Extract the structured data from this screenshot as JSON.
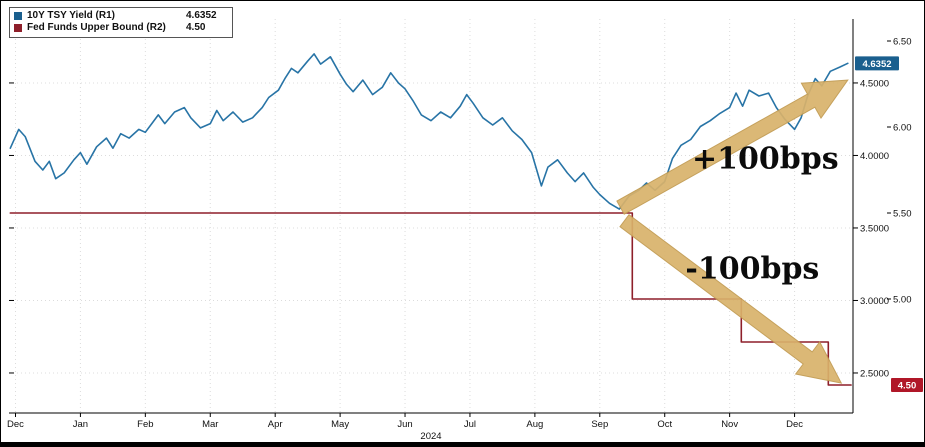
{
  "legend": {
    "items": [
      {
        "label": "10Y TSY Yield (R1)",
        "value": "4.6352",
        "color": "#1a5f8e"
      },
      {
        "label": "Fed Funds Upper Bound (R2)",
        "value": "4.50",
        "color": "#8e1f2a"
      }
    ]
  },
  "chart_data": {
    "type": "line",
    "x_axis": {
      "labels": [
        "Dec",
        "Jan",
        "Feb",
        "Mar",
        "Apr",
        "May",
        "Jun",
        "Jul",
        "Aug",
        "Sep",
        "Oct",
        "Nov",
        "Dec"
      ],
      "year_label": "2024",
      "range": [
        -0.1,
        12.9
      ]
    },
    "axes": {
      "r1": {
        "name": "R1",
        "ticks": [
          4.5,
          4.0,
          3.5,
          3.0,
          2.5
        ],
        "tick_labels": [
          "4.5000",
          "4.0000",
          "3.5000",
          "3.0000",
          "2.5000"
        ],
        "range": [
          2.224,
          4.941
        ],
        "current_value": 4.6352,
        "current_label": "4.6352",
        "badge_color": "#1a5f8e"
      },
      "r2": {
        "name": "R2",
        "ticks": [
          6.5,
          6.0,
          5.5,
          5.0
        ],
        "tick_labels": [
          "6.50",
          "6.00",
          "5.50",
          "5.00"
        ],
        "range": [
          4.337,
          6.628
        ],
        "current_value": 4.5,
        "current_label": "4.50",
        "badge_color": "#b01728"
      }
    },
    "series": [
      {
        "name": "10Y TSY Yield (R1)",
        "axis": "r1",
        "color": "#2874a6",
        "points": [
          [
            -0.08,
            4.05
          ],
          [
            0.05,
            4.18
          ],
          [
            0.15,
            4.13
          ],
          [
            0.3,
            3.96
          ],
          [
            0.42,
            3.9
          ],
          [
            0.52,
            3.96
          ],
          [
            0.62,
            3.84
          ],
          [
            0.75,
            3.88
          ],
          [
            0.9,
            3.97
          ],
          [
            1.0,
            4.02
          ],
          [
            1.1,
            3.94
          ],
          [
            1.25,
            4.06
          ],
          [
            1.4,
            4.12
          ],
          [
            1.5,
            4.05
          ],
          [
            1.62,
            4.15
          ],
          [
            1.75,
            4.12
          ],
          [
            1.9,
            4.18
          ],
          [
            2.0,
            4.16
          ],
          [
            2.1,
            4.22
          ],
          [
            2.2,
            4.28
          ],
          [
            2.3,
            4.22
          ],
          [
            2.45,
            4.3
          ],
          [
            2.6,
            4.33
          ],
          [
            2.7,
            4.26
          ],
          [
            2.85,
            4.19
          ],
          [
            3.0,
            4.22
          ],
          [
            3.1,
            4.31
          ],
          [
            3.2,
            4.24
          ],
          [
            3.35,
            4.3
          ],
          [
            3.5,
            4.23
          ],
          [
            3.65,
            4.26
          ],
          [
            3.8,
            4.33
          ],
          [
            3.9,
            4.4
          ],
          [
            4.05,
            4.45
          ],
          [
            4.15,
            4.53
          ],
          [
            4.25,
            4.6
          ],
          [
            4.35,
            4.57
          ],
          [
            4.5,
            4.65
          ],
          [
            4.6,
            4.7
          ],
          [
            4.7,
            4.63
          ],
          [
            4.85,
            4.68
          ],
          [
            5.0,
            4.56
          ],
          [
            5.1,
            4.49
          ],
          [
            5.2,
            4.44
          ],
          [
            5.35,
            4.52
          ],
          [
            5.5,
            4.42
          ],
          [
            5.65,
            4.47
          ],
          [
            5.78,
            4.57
          ],
          [
            5.9,
            4.5
          ],
          [
            6.0,
            4.46
          ],
          [
            6.12,
            4.38
          ],
          [
            6.25,
            4.28
          ],
          [
            6.4,
            4.24
          ],
          [
            6.55,
            4.3
          ],
          [
            6.7,
            4.26
          ],
          [
            6.85,
            4.34
          ],
          [
            6.95,
            4.42
          ],
          [
            7.05,
            4.36
          ],
          [
            7.2,
            4.26
          ],
          [
            7.35,
            4.21
          ],
          [
            7.5,
            4.26
          ],
          [
            7.65,
            4.17
          ],
          [
            7.8,
            4.11
          ],
          [
            7.95,
            4.02
          ],
          [
            8.1,
            3.79
          ],
          [
            8.2,
            3.92
          ],
          [
            8.35,
            3.97
          ],
          [
            8.5,
            3.88
          ],
          [
            8.62,
            3.82
          ],
          [
            8.75,
            3.88
          ],
          [
            8.9,
            3.78
          ],
          [
            9.0,
            3.73
          ],
          [
            9.15,
            3.67
          ],
          [
            9.3,
            3.63
          ],
          [
            9.45,
            3.72
          ],
          [
            9.6,
            3.76
          ],
          [
            9.72,
            3.81
          ],
          [
            9.85,
            3.76
          ],
          [
            10.0,
            3.82
          ],
          [
            10.12,
            3.98
          ],
          [
            10.25,
            4.07
          ],
          [
            10.4,
            4.11
          ],
          [
            10.55,
            4.2
          ],
          [
            10.7,
            4.24
          ],
          [
            10.85,
            4.29
          ],
          [
            11.0,
            4.33
          ],
          [
            11.1,
            4.43
          ],
          [
            11.2,
            4.34
          ],
          [
            11.3,
            4.45
          ],
          [
            11.45,
            4.41
          ],
          [
            11.6,
            4.43
          ],
          [
            11.72,
            4.33
          ],
          [
            11.85,
            4.25
          ],
          [
            12.0,
            4.18
          ],
          [
            12.1,
            4.26
          ],
          [
            12.2,
            4.41
          ],
          [
            12.32,
            4.53
          ],
          [
            12.42,
            4.48
          ],
          [
            12.55,
            4.58
          ],
          [
            12.7,
            4.61
          ],
          [
            12.82,
            4.6352
          ]
        ]
      },
      {
        "name": "Fed Funds Upper Bound (R2)",
        "axis": "r2",
        "color": "#8e1f2a",
        "points": [
          [
            -0.08,
            5.5
          ],
          [
            9.5,
            5.5
          ],
          [
            9.5,
            5.0
          ],
          [
            11.18,
            5.0
          ],
          [
            11.18,
            4.75
          ],
          [
            12.52,
            4.75
          ],
          [
            12.52,
            4.5
          ],
          [
            12.87,
            4.5
          ]
        ]
      }
    ],
    "annotations": [
      {
        "text": "+100bps",
        "x": 11.55,
        "y_r1": 3.91
      },
      {
        "text": "-100bps",
        "x": 11.35,
        "y_r1": 3.15
      }
    ],
    "arrows": [
      {
        "from": [
          9.32,
          3.64
        ],
        "to": [
          12.82,
          4.52
        ]
      },
      {
        "from": [
          9.38,
          3.55
        ],
        "to": [
          12.72,
          2.43
        ]
      }
    ],
    "arrow_color": "#d9b26b",
    "arrow_edge_color": "#c19a4f",
    "grid_color": "#dcdcdc",
    "axis_color": "#000000"
  }
}
